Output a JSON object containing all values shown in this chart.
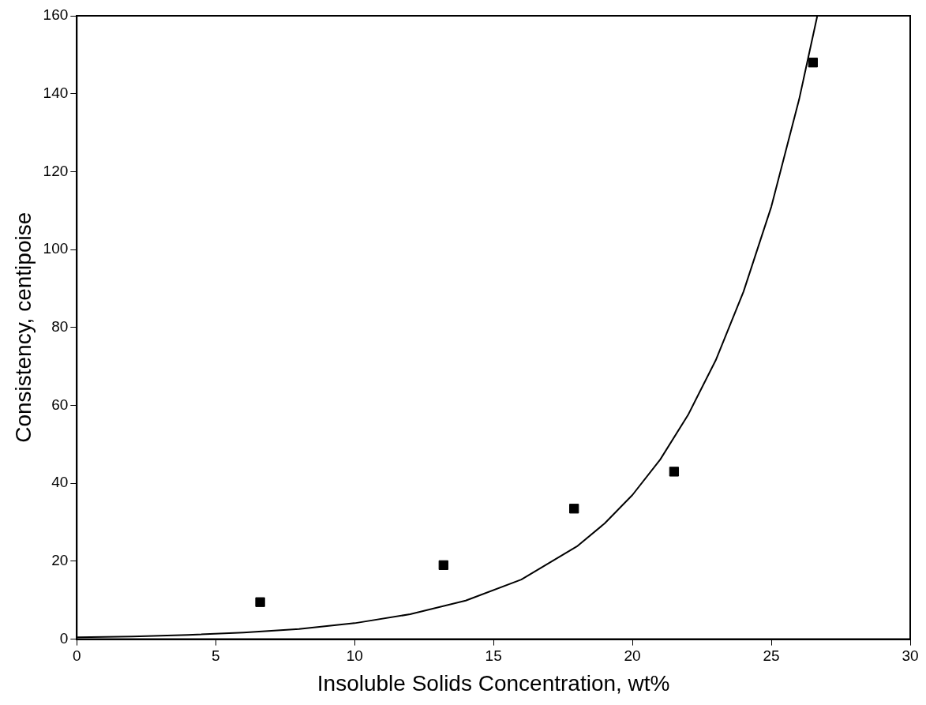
{
  "chart_data": {
    "type": "scatter",
    "xlabel": "Insoluble Solids Concentration, wt%",
    "ylabel": "Consistency, centipoise",
    "xlim": [
      0,
      30
    ],
    "xticks": [
      0,
      5,
      10,
      15,
      20,
      25,
      30
    ],
    "ylim": [
      0,
      160
    ],
    "yticks": [
      0,
      20,
      40,
      60,
      80,
      100,
      120,
      140,
      160
    ],
    "grid": false,
    "legend": false,
    "marker": "square",
    "series": [
      {
        "color": "#000000",
        "x": [
          6.6,
          13.2,
          17.9,
          21.5,
          26.5
        ],
        "values": [
          9.5,
          19,
          33.5,
          43,
          148
        ]
      },
      {
        "type": "line",
        "color": "#000000",
        "line_style": "solid",
        "marker": "none",
        "x": [
          0,
          2,
          4,
          6,
          8,
          10,
          12,
          14,
          16,
          18,
          19,
          20,
          21,
          22,
          23,
          24,
          25,
          26,
          26.65
        ],
        "values": [
          0.5,
          0.7,
          1.1,
          1.7,
          2.6,
          4.1,
          6.4,
          9.9,
          15.3,
          23.8,
          29.7,
          37,
          46.1,
          57.5,
          71.6,
          89.2,
          111,
          138.5,
          159.8
        ]
      }
    ]
  }
}
